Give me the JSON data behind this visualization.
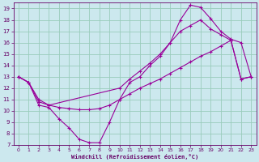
{
  "xlabel": "Windchill (Refroidissement éolien,°C)",
  "bg_color": "#cce8ee",
  "grid_color": "#99ccbb",
  "line_color": "#990099",
  "xlim": [
    -0.5,
    23.5
  ],
  "ylim": [
    7,
    19.5
  ],
  "yticks": [
    7,
    8,
    9,
    10,
    11,
    12,
    13,
    14,
    15,
    16,
    17,
    18,
    19
  ],
  "xticks": [
    0,
    1,
    2,
    3,
    4,
    5,
    6,
    7,
    8,
    9,
    10,
    11,
    12,
    13,
    14,
    15,
    16,
    17,
    18,
    19,
    20,
    21,
    22,
    23
  ],
  "line1_x": [
    0,
    1,
    2,
    3,
    4,
    5,
    6,
    7,
    8,
    9,
    10,
    11,
    12,
    13,
    14,
    15,
    16,
    17,
    18,
    19,
    20,
    21,
    22,
    23
  ],
  "line1_y": [
    13.0,
    12.5,
    10.5,
    10.3,
    9.3,
    8.5,
    7.5,
    7.2,
    7.2,
    9.0,
    11.0,
    12.5,
    13.0,
    14.0,
    14.8,
    16.0,
    18.0,
    19.3,
    19.1,
    18.1,
    17.0,
    16.3,
    16.0,
    13.0
  ],
  "line2_x": [
    0,
    1,
    2,
    3,
    4,
    5,
    6,
    7,
    8,
    9,
    10,
    11,
    12,
    13,
    14,
    15,
    16,
    17,
    18,
    19,
    20,
    21,
    22,
    23
  ],
  "line2_y": [
    13.0,
    12.5,
    10.8,
    10.5,
    10.3,
    10.2,
    10.1,
    10.1,
    10.2,
    10.5,
    11.0,
    11.5,
    12.0,
    12.4,
    12.8,
    13.3,
    13.8,
    14.3,
    14.8,
    15.2,
    15.7,
    16.2,
    12.8,
    13.0
  ],
  "line3_x": [
    0,
    1,
    2,
    3,
    10,
    11,
    12,
    13,
    14,
    15,
    16,
    17,
    18,
    19,
    20,
    21,
    22,
    23
  ],
  "line3_y": [
    13.0,
    12.5,
    11.0,
    10.5,
    12.0,
    12.8,
    13.5,
    14.2,
    15.0,
    16.0,
    17.0,
    17.5,
    18.0,
    17.2,
    16.7,
    16.2,
    12.8,
    13.0
  ]
}
